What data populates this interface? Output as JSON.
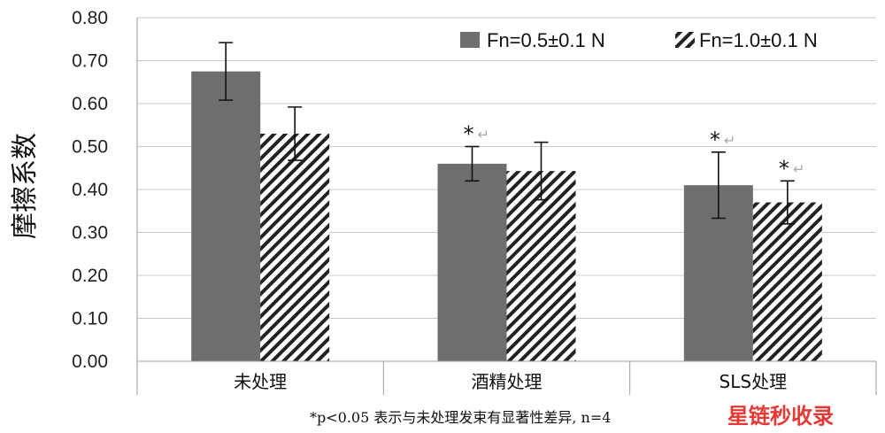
{
  "chart_data": {
    "type": "bar",
    "ylabel": "摩擦系数",
    "ylim": [
      0,
      0.8
    ],
    "yticks": [
      "0.00",
      "0.10",
      "0.20",
      "0.30",
      "0.40",
      "0.50",
      "0.60",
      "0.70",
      "0.80"
    ],
    "categories": [
      "未处理",
      "酒精处理",
      "SLS处理"
    ],
    "series": [
      {
        "name": "Fn=0.5±0.1 N",
        "values": [
          0.675,
          0.46,
          0.41
        ],
        "errors": [
          0.067,
          0.04,
          0.077
        ],
        "color": "#6e6e6e",
        "pattern": "solid"
      },
      {
        "name": "Fn=1.0±0.1 N",
        "values": [
          0.53,
          0.443,
          0.37
        ],
        "errors": [
          0.062,
          0.067,
          0.05
        ],
        "color": "#222222",
        "pattern": "diagonal-hatch"
      }
    ],
    "significance": [
      {
        "category": 1,
        "series": 0,
        "mark": "*"
      },
      {
        "category": 2,
        "series": 0,
        "mark": "*"
      },
      {
        "category": 2,
        "series": 1,
        "mark": "*"
      }
    ],
    "legend_position": "top-right",
    "grid": true,
    "note": "*p<0.05 表示与未处理发束有显著性差异, n=4"
  },
  "watermark": "星链秒收录",
  "return_glyph": "↵"
}
